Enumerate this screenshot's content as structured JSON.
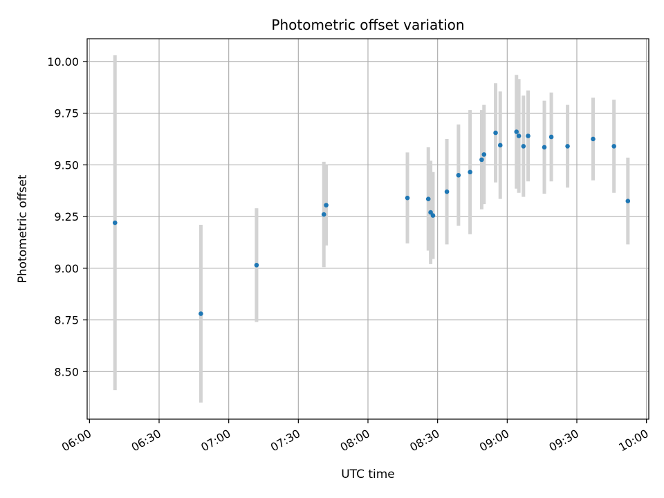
{
  "chart_data": {
    "type": "scatter",
    "title": "Photometric offset variation",
    "xlabel": "UTC time",
    "ylabel": "Photometric offset",
    "x_unit": "UTC time (HH:MM)",
    "xlim": [
      "05:59",
      "10:01"
    ],
    "ylim": [
      8.27,
      10.11
    ],
    "grid": true,
    "x_ticks": [
      "06:00",
      "06:30",
      "07:00",
      "07:30",
      "08:00",
      "08:30",
      "09:00",
      "09:30",
      "10:00"
    ],
    "y_ticks": [
      "8.50",
      "8.75",
      "9.00",
      "9.25",
      "9.50",
      "9.75",
      "10.00"
    ],
    "x_tick_values": [
      "06:00",
      "06:30",
      "07:00",
      "07:30",
      "08:00",
      "08:30",
      "09:00",
      "09:30",
      "10:00"
    ],
    "y_tick_values": [
      8.5,
      8.75,
      9.0,
      9.25,
      9.5,
      9.75,
      10.0
    ],
    "colors": {
      "point": "#1f77b4",
      "errorbar": "#d3d3d3",
      "grid": "#b0b0b0"
    },
    "points": [
      {
        "x": "06:11",
        "y": 9.22,
        "yerr": 0.81
      },
      {
        "x": "06:48",
        "y": 8.78,
        "yerr": 0.43
      },
      {
        "x": "07:12",
        "y": 9.015,
        "yerr": 0.275
      },
      {
        "x": "07:41",
        "y": 9.26,
        "yerr": 0.255
      },
      {
        "x": "07:42",
        "y": 9.305,
        "yerr": 0.195
      },
      {
        "x": "08:17",
        "y": 9.34,
        "yerr": 0.22
      },
      {
        "x": "08:26",
        "y": 9.335,
        "yerr": 0.25
      },
      {
        "x": "08:27",
        "y": 9.27,
        "yerr": 0.25
      },
      {
        "x": "08:28",
        "y": 9.255,
        "yerr": 0.21
      },
      {
        "x": "08:34",
        "y": 9.37,
        "yerr": 0.255
      },
      {
        "x": "08:39",
        "y": 9.45,
        "yerr": 0.245
      },
      {
        "x": "08:44",
        "y": 9.465,
        "yerr": 0.3
      },
      {
        "x": "08:49",
        "y": 9.525,
        "yerr": 0.24
      },
      {
        "x": "08:50",
        "y": 9.55,
        "yerr": 0.24
      },
      {
        "x": "08:55",
        "y": 9.655,
        "yerr": 0.24
      },
      {
        "x": "08:57",
        "y": 9.595,
        "yerr": 0.26
      },
      {
        "x": "09:04",
        "y": 9.66,
        "yerr": 0.275
      },
      {
        "x": "09:05",
        "y": 9.64,
        "yerr": 0.275
      },
      {
        "x": "09:07",
        "y": 9.59,
        "yerr": 0.245
      },
      {
        "x": "09:09",
        "y": 9.64,
        "yerr": 0.22
      },
      {
        "x": "09:16",
        "y": 9.585,
        "yerr": 0.225
      },
      {
        "x": "09:19",
        "y": 9.635,
        "yerr": 0.215
      },
      {
        "x": "09:26",
        "y": 9.59,
        "yerr": 0.2
      },
      {
        "x": "09:37",
        "y": 9.625,
        "yerr": 0.2
      },
      {
        "x": "09:46",
        "y": 9.59,
        "yerr": 0.225
      },
      {
        "x": "09:52",
        "y": 9.325,
        "yerr": 0.21
      }
    ]
  }
}
